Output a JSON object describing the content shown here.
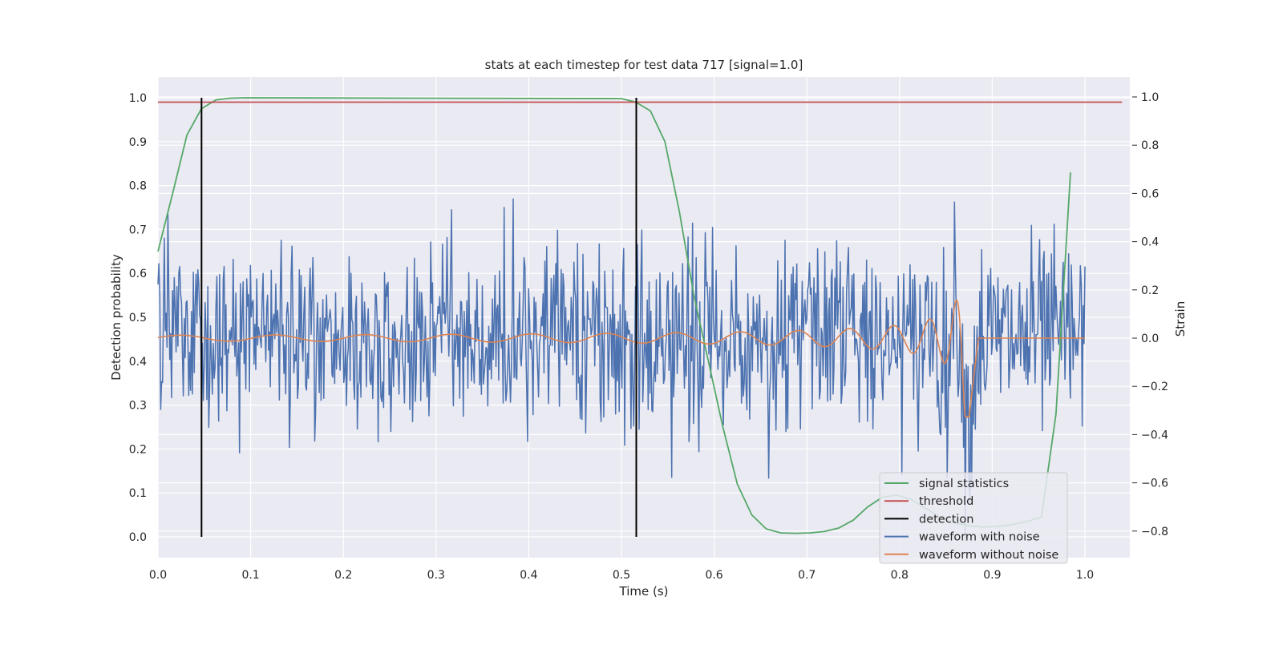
{
  "chart_data": {
    "type": "line",
    "title": "stats at each timestep for test data 717 [signal=1.0]",
    "xlabel": "Time (s)",
    "ylabel": "Detection probability",
    "y2label": "Strain",
    "xlim": [
      0.0,
      1.05
    ],
    "ylim": [
      -0.05,
      1.05
    ],
    "y2lim": [
      -0.91,
      1.08
    ],
    "xticks": [
      "0.0",
      "0.1",
      "0.2",
      "0.3",
      "0.4",
      "0.5",
      "0.6",
      "0.7",
      "0.8",
      "0.9",
      "1.0"
    ],
    "yticks": [
      "0.0",
      "0.1",
      "0.2",
      "0.3",
      "0.4",
      "0.5",
      "0.6",
      "0.7",
      "0.8",
      "0.9",
      "1.0"
    ],
    "y2ticks": [
      "−0.8",
      "−0.6",
      "−0.4",
      "−0.2",
      "0.0",
      "0.2",
      "0.4",
      "0.6",
      "0.8",
      "1.0"
    ],
    "grid": true,
    "legend_position": "bottom-right",
    "colors": {
      "signal_statistics": "#55a868",
      "threshold": "#c44e52",
      "detection": "#000000",
      "waveform_with_noise": "#4c72b0",
      "waveform_without_noise": "#dd8452",
      "plot_background": "#eaeaf2"
    },
    "series": [
      {
        "name": "signal statistics",
        "axis": "left",
        "x": [
          0.0,
          0.0156,
          0.0312,
          0.0469,
          0.0625,
          0.0781,
          0.0938,
          0.5,
          0.5156,
          0.5312,
          0.5469,
          0.5625,
          0.5781,
          0.5938,
          0.6094,
          0.625,
          0.6406,
          0.6562,
          0.6719,
          0.6875,
          0.7031,
          0.7188,
          0.7344,
          0.75,
          0.7656,
          0.7812,
          0.7969,
          0.8125,
          0.8281,
          0.8438,
          0.8594,
          0.875,
          0.8906,
          0.9062,
          0.9219,
          0.9375,
          0.9531,
          0.9688,
          0.9844
        ],
        "y": [
          0.65,
          0.78,
          0.915,
          0.975,
          0.995,
          0.999,
          1.0,
          0.998,
          0.99,
          0.97,
          0.9,
          0.74,
          0.55,
          0.4,
          0.25,
          0.12,
          0.05,
          0.018,
          0.009,
          0.008,
          0.009,
          0.012,
          0.02,
          0.038,
          0.068,
          0.09,
          0.095,
          0.085,
          0.065,
          0.045,
          0.032,
          0.025,
          0.022,
          0.024,
          0.028,
          0.035,
          0.045,
          0.28,
          0.83
        ]
      },
      {
        "name": "threshold",
        "axis": "left",
        "x": [
          0.0,
          1.04
        ],
        "y": [
          0.99,
          0.99
        ]
      },
      {
        "name": "detection",
        "axis": "left",
        "x_positions": [
          0.047,
          0.516
        ],
        "y_range": [
          0.0,
          1.0
        ]
      },
      {
        "name": "waveform with noise",
        "axis": "right",
        "description": "random noise of ~0.2 std over 0.0–1.0 s",
        "x_range": [
          0.0,
          1.0
        ],
        "samples": 1024
      },
      {
        "name": "waveform without noise",
        "axis": "right",
        "description": "chirp: amplitude ~0.01 growing to ~0.35 with rising frequency, merger near 0.875 s, flat 0 afterwards",
        "x_range": [
          0.0,
          1.0
        ],
        "samples": 1024
      }
    ]
  }
}
